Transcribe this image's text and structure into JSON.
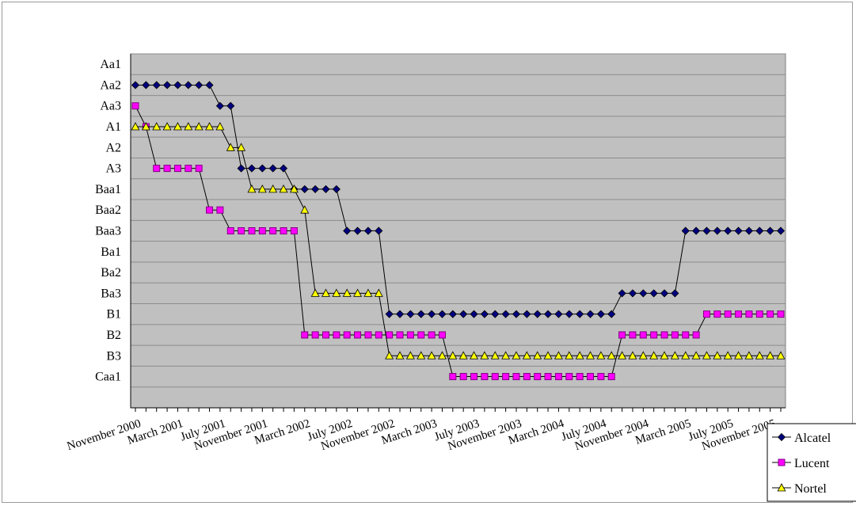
{
  "chart_data": {
    "type": "line",
    "title": "",
    "xlabel": "",
    "ylabel": "",
    "y_categories": [
      "Aa1",
      "Aa2",
      "Aa3",
      "A1",
      "A2",
      "A3",
      "Baa1",
      "Baa2",
      "Baa3",
      "Ba1",
      "Ba2",
      "Ba3",
      "B1",
      "B2",
      "B3",
      "Caa1"
    ],
    "x_tick_labels": [
      "November 2000",
      "March 2001",
      "July 2001",
      "November 2001",
      "March 2002",
      "July 2002",
      "November 2002",
      "March 2003",
      "July 2003",
      "November 2003",
      "March 2004",
      "July 2004",
      "November 2004",
      "March 2005",
      "July 2005",
      "November 2005"
    ],
    "x_range": [
      "2000-11",
      "2005-12"
    ],
    "grid": "horizontal",
    "plot_background": "#c0c0c0",
    "legend_position": "right-bottom",
    "series": [
      {
        "name": "Alcatel",
        "color": "#000080",
        "marker": "diamond",
        "runs": [
          [
            "Aa2",
            8
          ],
          [
            "Aa3",
            2
          ],
          [
            "A3",
            5
          ],
          [
            "Baa1",
            5
          ],
          [
            "Baa3",
            4
          ],
          [
            "B1",
            22
          ],
          [
            "Ba3",
            6
          ],
          [
            "Baa3",
            10
          ]
        ]
      },
      {
        "name": "Lucent",
        "color": "#ff00ff",
        "marker": "square",
        "runs": [
          [
            "Aa3",
            1
          ],
          [
            "A1",
            1
          ],
          [
            "A3",
            5
          ],
          [
            "Baa2",
            2
          ],
          [
            "Baa3",
            7
          ],
          [
            "B2",
            14
          ],
          [
            "Caa1",
            16
          ],
          [
            "B2",
            8
          ],
          [
            "B1",
            8
          ]
        ]
      },
      {
        "name": "Nortel",
        "color": "#ffff00",
        "marker": "triangle",
        "runs": [
          [
            "A1",
            9
          ],
          [
            "A2",
            2
          ],
          [
            "Baa1",
            5
          ],
          [
            "Baa2",
            1
          ],
          [
            "Ba3",
            7
          ],
          [
            "B3",
            38
          ]
        ]
      }
    ]
  }
}
